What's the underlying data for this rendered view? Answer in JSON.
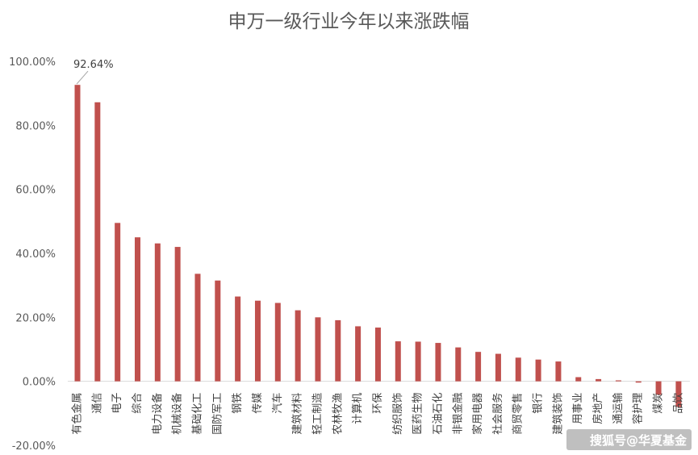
{
  "chart_data": {
    "type": "bar",
    "title": "申万一级行业今年以来涨跌幅",
    "xlabel": "",
    "ylabel": "",
    "ylim": [
      -20,
      100
    ],
    "ytick_values": [
      -20,
      0,
      20,
      40,
      60,
      80,
      100
    ],
    "ytick_labels": [
      "-20.00%",
      "0.00%",
      "20.00%",
      "40.00%",
      "60.00%",
      "80.00%",
      "100.00%"
    ],
    "grid": false,
    "bar_color": "#c0504d",
    "categories": [
      "有色金属",
      "通信",
      "电子",
      "综合",
      "电力设备",
      "机械设备",
      "基础化工",
      "国防军工",
      "钢铁",
      "传媒",
      "汽车",
      "建筑材料",
      "轻工制造",
      "农林牧渔",
      "计算机",
      "环保",
      "纺织服饰",
      "医药生物",
      "石油石化",
      "非银金融",
      "家用电器",
      "社会服务",
      "商贸零售",
      "银行",
      "建筑装饰",
      "公用事业",
      "房地产",
      "交通运输",
      "美容护理",
      "煤炭",
      "食品饮料"
    ],
    "category_display": [
      "有色金属",
      "通信",
      "电子",
      "综合",
      "电力设备",
      "机械设备",
      "基础化工",
      "国防军工",
      "钢铁",
      "传媒",
      "汽车",
      "建筑材料",
      "轻工制造",
      "农林牧渔",
      "计算机",
      "环保",
      "纺织服饰",
      "医药生物",
      "石油石化",
      "非银金融",
      "家用电器",
      "社会服务",
      "商贸零售",
      "银行",
      "建筑装饰",
      "用事业",
      "房地产",
      "通运输",
      "容护理",
      "煤炭",
      "品饮"
    ],
    "values": [
      92.64,
      87.2,
      49.5,
      45.0,
      43.1,
      42.0,
      33.6,
      31.5,
      26.5,
      25.2,
      24.5,
      22.2,
      20.0,
      19.1,
      17.2,
      16.8,
      12.5,
      12.4,
      12.0,
      10.6,
      9.2,
      8.6,
      7.4,
      6.8,
      6.2,
      1.3,
      0.7,
      0.3,
      -0.4,
      -4.2,
      -8.0
    ],
    "data_labels": [
      {
        "index": 0,
        "text": "92.64%"
      }
    ]
  },
  "watermark": "搜狐号@华夏基金"
}
